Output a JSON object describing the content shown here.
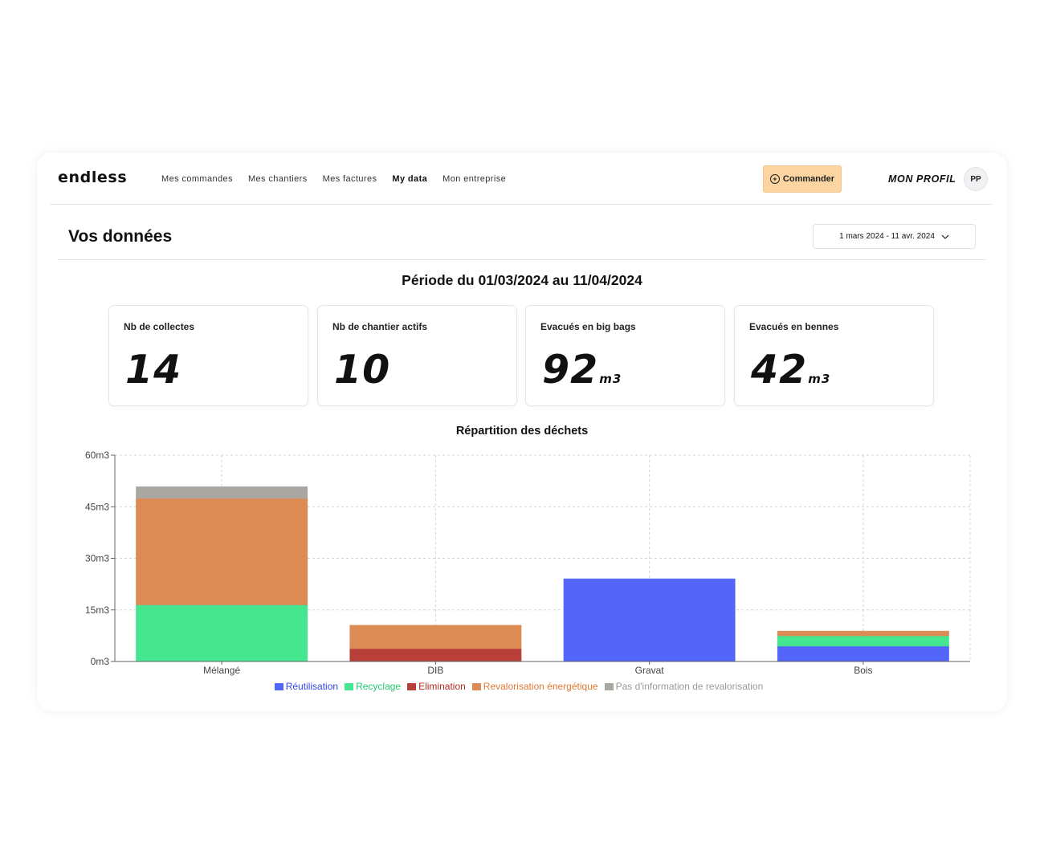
{
  "nav": {
    "logo": "endless",
    "links": [
      "Mes commandes",
      "Mes chantiers",
      "Mes factures",
      "My data",
      "Mon entreprise"
    ],
    "active_index": 3,
    "order_button": "Commander",
    "profile_label": "MON PROFIL",
    "avatar_initials": "PP"
  },
  "page": {
    "title": "Vos données",
    "date_range": "1 mars 2024 - 11 avr. 2024",
    "period": "Période du 01/03/2024 au 11/04/2024"
  },
  "kpis": [
    {
      "label": "Nb de collectes",
      "value": "14",
      "unit": ""
    },
    {
      "label": "Nb de chantier actifs",
      "value": "10",
      "unit": ""
    },
    {
      "label": "Evacués en big bags",
      "value": "92",
      "unit": "m3"
    },
    {
      "label": "Evacués en bennes",
      "value": "42",
      "unit": "m3"
    }
  ],
  "chart_data": {
    "type": "bar",
    "stacked": true,
    "title": "Répartition des déchets",
    "categories": [
      "Mélangé",
      "DIB",
      "Gravat",
      "Bois"
    ],
    "yticks": [
      "0m3",
      "15m3",
      "30m3",
      "45m3",
      "60m3"
    ],
    "ylim": [
      0,
      60
    ],
    "grid": true,
    "legend_position": "bottom",
    "series": [
      {
        "name": "Réutilisation",
        "color": "#5465fa",
        "text_color": "#3344ee",
        "values": [
          0,
          0,
          24,
          4.5
        ]
      },
      {
        "name": "Recyclage",
        "color": "#44e68f",
        "text_color": "#22cc70",
        "values": [
          16.5,
          0,
          0,
          3
        ]
      },
      {
        "name": "Elimination",
        "color": "#b9403a",
        "text_color": "#b52a22",
        "values": [
          0,
          3.8,
          0,
          0
        ]
      },
      {
        "name": "Revalorisation énergétique",
        "color": "#dd8b55",
        "text_color": "#e07a35",
        "values": [
          31,
          6.7,
          0,
          1.3
        ]
      },
      {
        "name": "Pas d'information de revalorisation",
        "color": "#aaa7a3",
        "text_color": "#999999",
        "values": [
          3.3,
          0,
          0,
          0
        ]
      }
    ]
  }
}
